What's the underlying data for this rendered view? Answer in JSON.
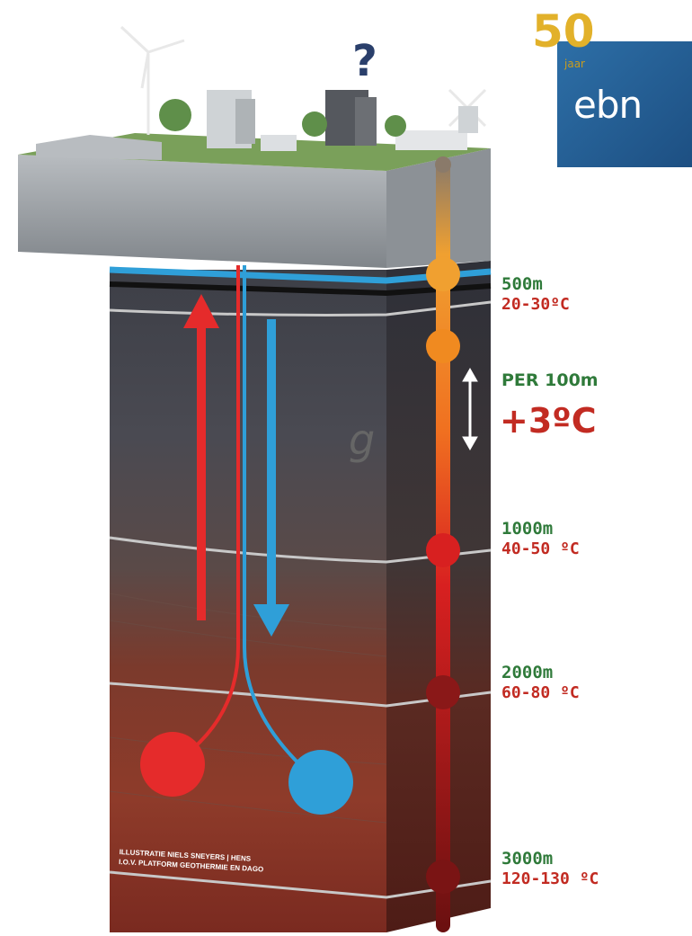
{
  "header": {
    "question_mark": "?",
    "partial_text": "g"
  },
  "logo": {
    "anniversary": "50",
    "jaar": "jaar",
    "brand": "ebn",
    "brand_color": "#1f5a8f",
    "accent_color": "#e2b12a"
  },
  "levels": [
    {
      "depth": "500m",
      "temp": "20-30ºC"
    },
    {
      "depth": "1000m",
      "temp": "40-50 ºC"
    },
    {
      "depth": "2000m",
      "temp": "60-80 ºC"
    },
    {
      "depth": "3000m",
      "temp": "120-130 ºC"
    }
  ],
  "gradient": {
    "label": "PER 100m",
    "value": "+3ºC"
  },
  "credit": {
    "line1": "ILLUSTRATIE NIELS SNEYERS | HENS",
    "line2": "I.O.V. PLATFORM GEOTHERMIE EN DAGO"
  },
  "colors": {
    "hot": "#e52b2b",
    "cold": "#2f9fd8",
    "earth": "#7a2a20",
    "label_green": "#2f7a3a",
    "label_red": "#c22b22"
  }
}
